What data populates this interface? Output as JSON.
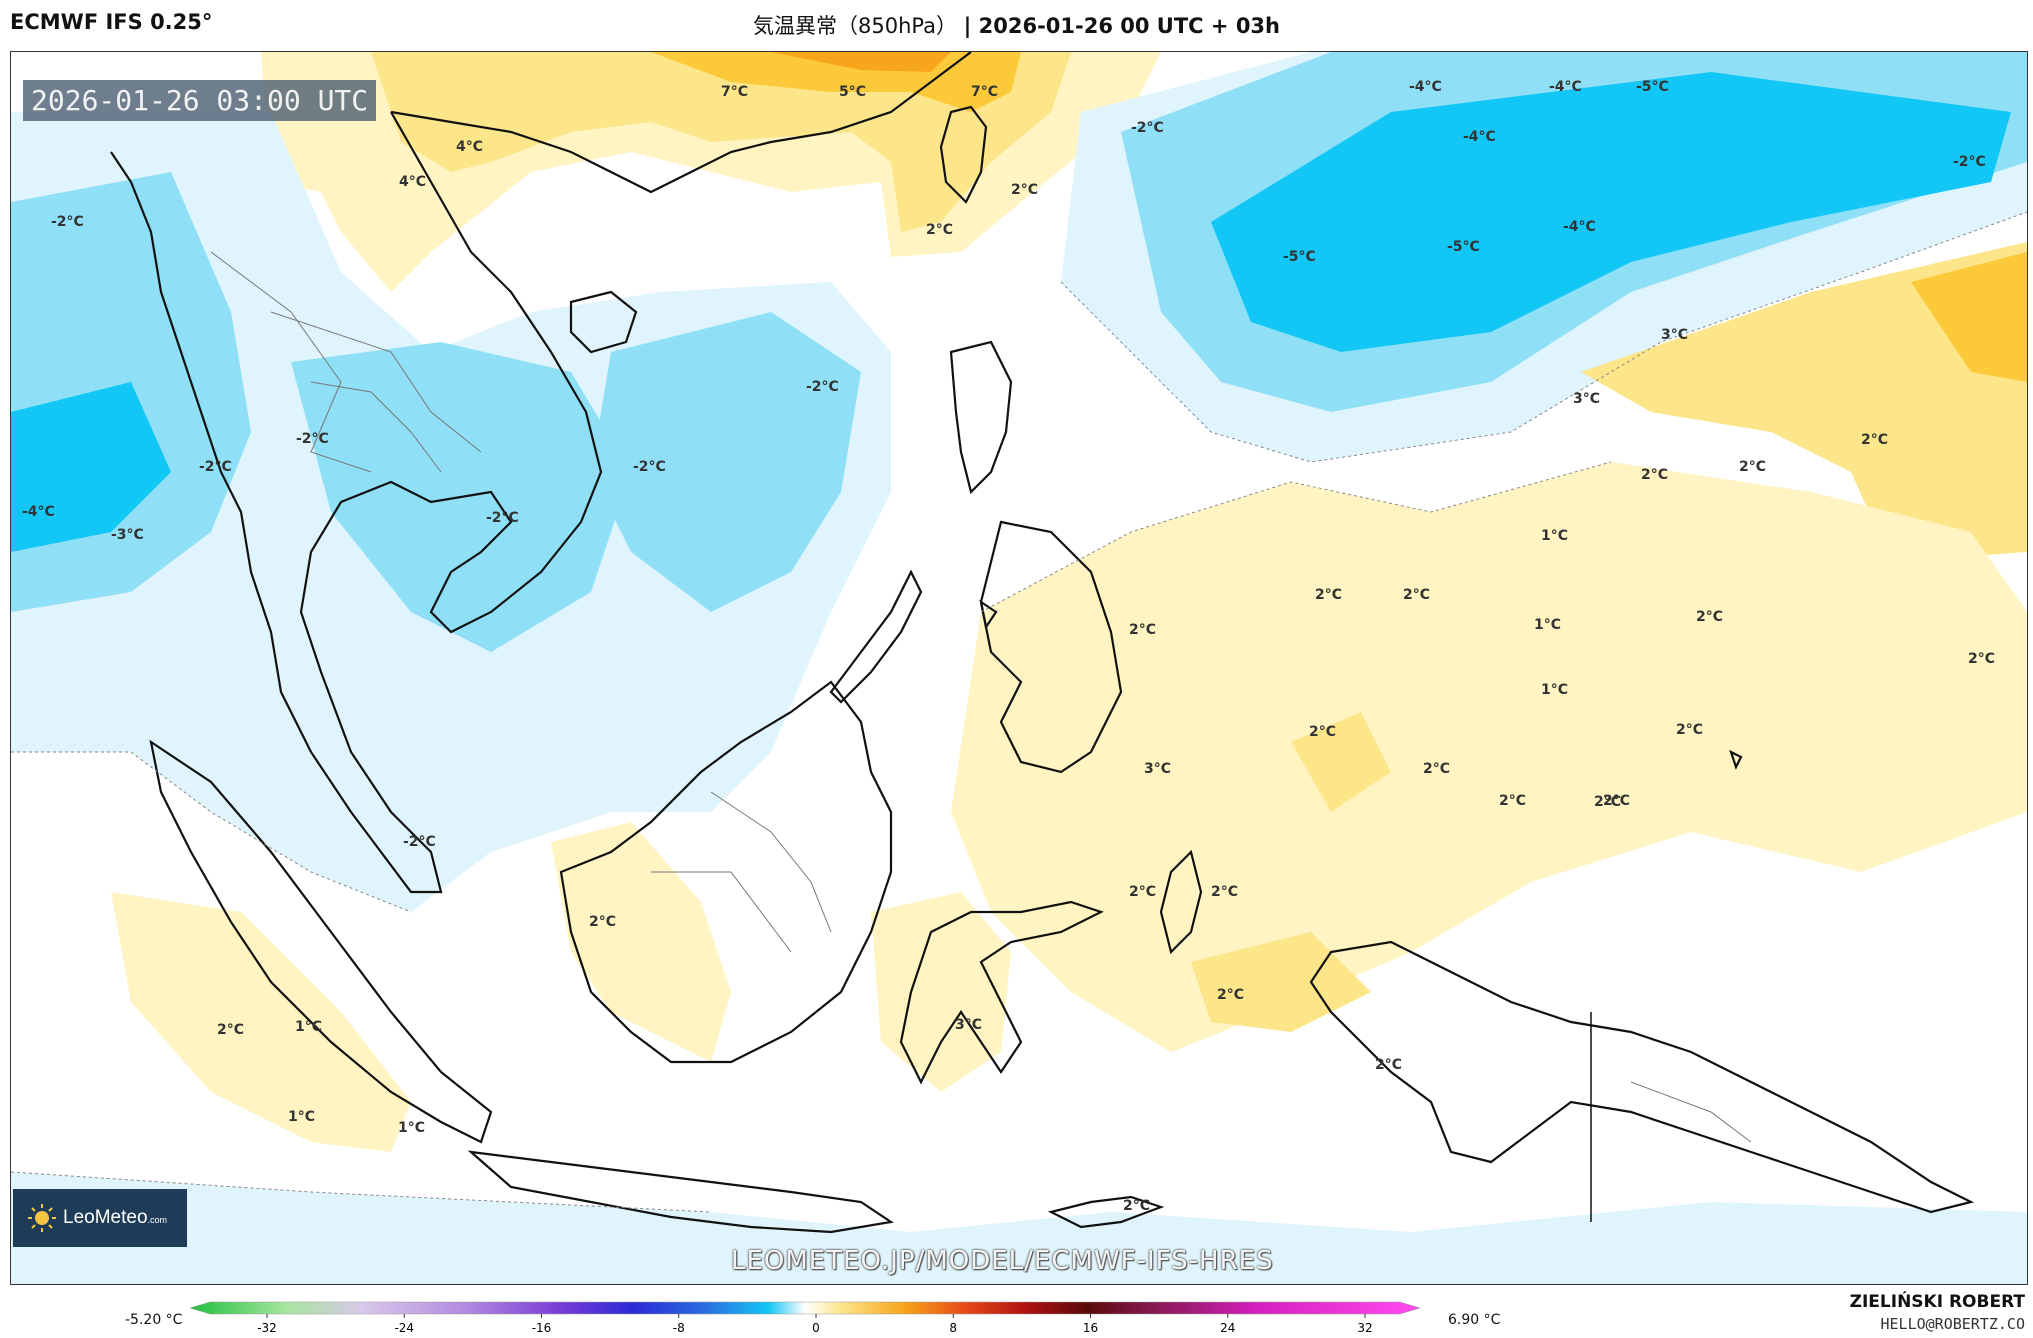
{
  "header": {
    "model": "ECMWF IFS 0.25°",
    "title_prefix": "気温異常（850hPa）",
    "title_run": "| 2026-01-26 00 UTC + 03h"
  },
  "map": {
    "valid_time": "2026-01-26 03:00 UTC",
    "watermark": "LEOMETEO.JP/MODEL/ECMWF-IFS-HRES",
    "logo_text": "LeoMeteo",
    "logo_suffix": ".com",
    "labels": [
      {
        "text": "-2°C"
      },
      {
        "text": "4°C"
      },
      {
        "text": "4°C"
      },
      {
        "text": "7°C"
      },
      {
        "text": "5°C"
      },
      {
        "text": "7°C"
      },
      {
        "text": "2°C"
      },
      {
        "text": "2°C"
      },
      {
        "text": "-2°C"
      },
      {
        "text": "-4°C"
      },
      {
        "text": "-4°C"
      },
      {
        "text": "-4°C"
      },
      {
        "text": "-5°C"
      },
      {
        "text": "-2°C"
      },
      {
        "text": "-5°C"
      },
      {
        "text": "-5°C"
      },
      {
        "text": "-4°C"
      },
      {
        "text": "3°C"
      },
      {
        "text": "3°C"
      },
      {
        "text": "2°C"
      },
      {
        "text": "2°C"
      },
      {
        "text": "2°C"
      },
      {
        "text": "-2°C"
      },
      {
        "text": "-2°C"
      },
      {
        "text": "-2°C"
      },
      {
        "text": "-2°C"
      },
      {
        "text": "-2°C"
      },
      {
        "text": "-4°C"
      },
      {
        "text": "-3°C"
      },
      {
        "text": "1°C"
      },
      {
        "text": "2°C"
      },
      {
        "text": "2°C"
      },
      {
        "text": "2°C"
      },
      {
        "text": "1°C"
      },
      {
        "text": "2°C"
      },
      {
        "text": "1°C"
      },
      {
        "text": "2°C"
      },
      {
        "text": "2°C"
      },
      {
        "text": "2°C"
      },
      {
        "text": "3°C"
      },
      {
        "text": "2°C"
      },
      {
        "text": "2°C"
      },
      {
        "text": "2°C"
      },
      {
        "text": "2°C"
      },
      {
        "text": "-2°C"
      },
      {
        "text": "2°C"
      },
      {
        "text": "2°C"
      },
      {
        "text": "2°C"
      },
      {
        "text": "3°C"
      },
      {
        "text": "2°C"
      },
      {
        "text": "2°C"
      },
      {
        "text": "1°C"
      },
      {
        "text": "2°C"
      },
      {
        "text": "1°C"
      },
      {
        "text": "1°C"
      },
      {
        "text": "2°C"
      }
    ]
  },
  "colorbar": {
    "min_label": "-5.20 °C",
    "max_label": "6.90 °C",
    "ticks": [
      "-32",
      "-24",
      "-16",
      "-8",
      "0",
      "8",
      "16",
      "24",
      "32"
    ]
  },
  "credit": {
    "name": "ZIELIŃSKI ROBERT",
    "email": "HELLO@ROBERTZ.CO"
  },
  "colors": {
    "cold_strong": "#12c6f5",
    "cold": "#8fe0f7",
    "cool": "#dff4fc",
    "warm_light": "#fff4c2",
    "warm": "#fde58a",
    "warm_strong": "#fbc93a",
    "hot": "#f7a51b"
  }
}
